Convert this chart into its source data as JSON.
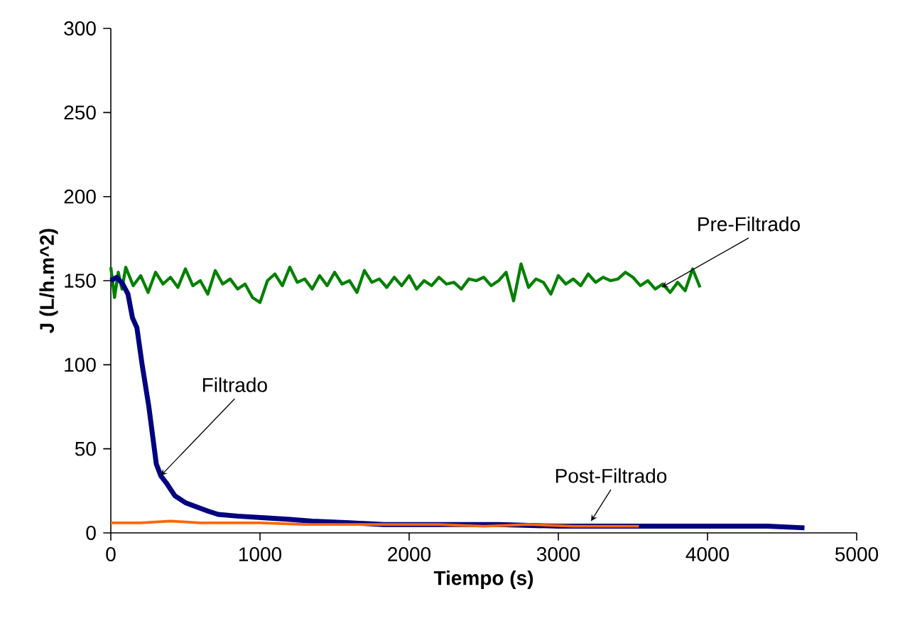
{
  "chart_data": {
    "type": "line",
    "xlabel": "Tiempo (s)",
    "ylabel": "J (L/h.m^2)",
    "xlim": [
      0,
      5000
    ],
    "ylim": [
      0,
      300
    ],
    "xticks": [
      0,
      1000,
      2000,
      3000,
      4000,
      5000
    ],
    "yticks": [
      0,
      50,
      100,
      150,
      200,
      250,
      300
    ],
    "series": [
      {
        "color": "#008000",
        "x": [
          0,
          25,
          50,
          75,
          100,
          150,
          200,
          250,
          300,
          350,
          400,
          450,
          500,
          550,
          600,
          650,
          700,
          750,
          800,
          850,
          900,
          950,
          1000,
          1050,
          1100,
          1150,
          1200,
          1250,
          1300,
          1350,
          1400,
          1450,
          1500,
          1550,
          1600,
          1650,
          1700,
          1750,
          1800,
          1850,
          1900,
          1950,
          2000,
          2050,
          2100,
          2150,
          2200,
          2250,
          2300,
          2350,
          2400,
          2450,
          2500,
          2550,
          2600,
          2650,
          2700,
          2750,
          2800,
          2850,
          2900,
          2950,
          3000,
          3050,
          3100,
          3150,
          3200,
          3250,
          3300,
          3350,
          3400,
          3450,
          3500,
          3550,
          3600,
          3650,
          3700,
          3750,
          3800,
          3850,
          3900,
          3950
        ],
        "values": [
          158,
          140,
          155,
          145,
          158,
          147,
          153,
          143,
          155,
          148,
          152,
          146,
          157,
          147,
          150,
          142,
          156,
          148,
          151,
          145,
          148,
          140,
          137,
          150,
          154,
          147,
          158,
          149,
          151,
          145,
          153,
          147,
          155,
          148,
          150,
          143,
          156,
          149,
          151,
          146,
          152,
          147,
          153,
          145,
          150,
          147,
          152,
          148,
          149,
          145,
          151,
          150,
          152,
          147,
          150,
          155,
          138,
          160,
          146,
          151,
          149,
          142,
          153,
          148,
          151,
          147,
          154,
          149,
          152,
          150,
          151,
          155,
          152,
          147,
          150,
          145,
          148,
          143,
          149,
          144,
          157,
          146
        ]
      },
      {
        "color": "#000080",
        "x": [
          0,
          40,
          80,
          115,
          145,
          175,
          210,
          255,
          305,
          335,
          370,
          430,
          500,
          560,
          650,
          720,
          850,
          1030,
          1200,
          1350,
          1600,
          1830,
          2200,
          2600,
          3000,
          3500,
          4000,
          4400,
          4650
        ],
        "values": [
          150,
          152,
          148,
          142,
          128,
          122,
          100,
          75,
          41,
          34,
          30,
          22,
          18,
          16,
          13,
          11,
          10,
          9,
          8,
          7,
          6,
          5,
          5,
          5,
          4,
          4,
          4,
          4,
          3
        ]
      },
      {
        "color": "#ff6600",
        "x": [
          0,
          200,
          400,
          600,
          800,
          1000,
          1300,
          1600,
          1900,
          2200,
          2500,
          2800,
          3100,
          3300,
          3540
        ],
        "values": [
          6,
          6,
          7,
          6,
          6,
          6,
          5,
          5,
          5,
          5,
          4,
          5,
          4,
          4,
          4
        ]
      }
    ],
    "annotations": [
      {
        "text": "Filtrado",
        "x": 335,
        "y": 34
      },
      {
        "text": "Pre-Filtrado",
        "x": 3692,
        "y": 146
      },
      {
        "text": "Post-Filtrado",
        "x": 3219,
        "y": 7
      }
    ]
  }
}
